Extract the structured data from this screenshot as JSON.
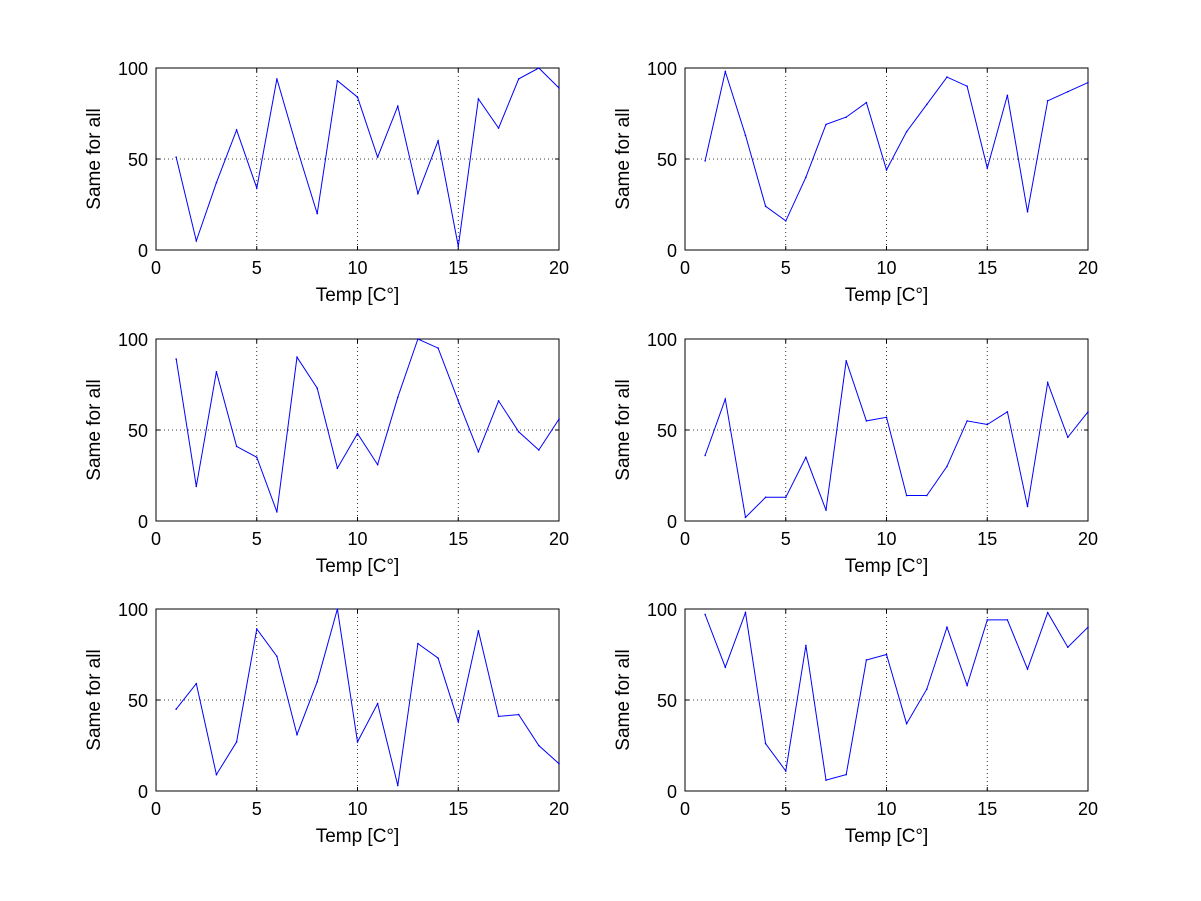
{
  "figure": {
    "background": "#ffffff",
    "line_color": "#0000ff",
    "grid_style": "dotted"
  },
  "chart_data": [
    {
      "type": "line",
      "grid": "x and y",
      "xlabel": "Temp [C°]",
      "ylabel": "Same for all",
      "xlim": [
        0,
        20
      ],
      "ylim": [
        0,
        100
      ],
      "xticks": [
        0,
        5,
        10,
        15,
        20
      ],
      "yticks": [
        0,
        50,
        100
      ],
      "series": [
        {
          "x": [
            1,
            2,
            3,
            4,
            5,
            6,
            7,
            8,
            9,
            10,
            11,
            12,
            13,
            14,
            15,
            16,
            17,
            18,
            19,
            20
          ],
          "y": [
            51,
            5,
            37,
            66,
            34,
            94,
            56,
            20,
            93,
            84,
            51,
            79,
            31,
            60,
            2,
            83,
            67,
            94,
            100,
            89
          ]
        }
      ]
    },
    {
      "type": "line",
      "grid": "x and y",
      "xlabel": "Temp [C°]",
      "ylabel": "Same for all",
      "xlim": [
        0,
        20
      ],
      "ylim": [
        0,
        100
      ],
      "xticks": [
        0,
        5,
        10,
        15,
        20
      ],
      "yticks": [
        0,
        50,
        100
      ],
      "series": [
        {
          "x": [
            1,
            2,
            3,
            4,
            5,
            6,
            7,
            8,
            9,
            10,
            11,
            12,
            13,
            14,
            15,
            16,
            17,
            18,
            19,
            20
          ],
          "y": [
            49,
            98,
            63,
            24,
            16,
            40,
            69,
            73,
            81,
            44,
            65,
            80,
            95,
            90,
            45,
            85,
            21,
            82,
            87,
            92
          ]
        }
      ]
    },
    {
      "type": "line",
      "grid": "x and y",
      "xlabel": "Temp [C°]",
      "ylabel": "Same for all",
      "xlim": [
        0,
        20
      ],
      "ylim": [
        0,
        100
      ],
      "xticks": [
        0,
        5,
        10,
        15,
        20
      ],
      "yticks": [
        0,
        50,
        100
      ],
      "series": [
        {
          "x": [
            1,
            2,
            3,
            4,
            5,
            6,
            7,
            8,
            9,
            10,
            11,
            12,
            13,
            14,
            15,
            16,
            17,
            18,
            19,
            20
          ],
          "y": [
            89,
            19,
            82,
            41,
            35,
            5,
            90,
            73,
            29,
            48,
            31,
            68,
            100,
            95,
            66,
            38,
            66,
            49,
            39,
            56
          ]
        }
      ]
    },
    {
      "type": "line",
      "grid": "x and y",
      "xlabel": "Temp [C°]",
      "ylabel": "Same for all",
      "xlim": [
        0,
        20
      ],
      "ylim": [
        0,
        100
      ],
      "xticks": [
        0,
        5,
        10,
        15,
        20
      ],
      "yticks": [
        0,
        50,
        100
      ],
      "series": [
        {
          "x": [
            1,
            2,
            3,
            4,
            5,
            6,
            7,
            8,
            9,
            10,
            11,
            12,
            13,
            14,
            15,
            16,
            17,
            18,
            19,
            20
          ],
          "y": [
            36,
            67,
            2,
            13,
            13,
            35,
            6,
            88,
            55,
            57,
            14,
            14,
            30,
            55,
            53,
            60,
            8,
            76,
            46,
            60
          ]
        }
      ]
    },
    {
      "type": "line",
      "grid": "x and y",
      "xlabel": "Temp [C°]",
      "ylabel": "Same for all",
      "xlim": [
        0,
        20
      ],
      "ylim": [
        0,
        100
      ],
      "xticks": [
        0,
        5,
        10,
        15,
        20
      ],
      "yticks": [
        0,
        50,
        100
      ],
      "series": [
        {
          "x": [
            1,
            2,
            3,
            4,
            5,
            6,
            7,
            8,
            9,
            10,
            11,
            12,
            13,
            14,
            15,
            16,
            17,
            18,
            19,
            20
          ],
          "y": [
            45,
            59,
            9,
            27,
            89,
            74,
            31,
            60,
            100,
            27,
            48,
            3,
            81,
            73,
            38,
            88,
            41,
            42,
            25,
            15
          ]
        }
      ]
    },
    {
      "type": "line",
      "grid": "x and y",
      "xlabel": "Temp [C°]",
      "ylabel": "Same for all",
      "xlim": [
        0,
        20
      ],
      "ylim": [
        0,
        100
      ],
      "xticks": [
        0,
        5,
        10,
        15,
        20
      ],
      "yticks": [
        0,
        50,
        100
      ],
      "series": [
        {
          "x": [
            1,
            2,
            3,
            4,
            5,
            6,
            7,
            8,
            9,
            10,
            11,
            12,
            13,
            14,
            15,
            16,
            17,
            18,
            19,
            20
          ],
          "y": [
            97,
            68,
            98,
            26,
            11,
            80,
            6,
            9,
            72,
            75,
            37,
            56,
            90,
            58,
            94,
            94,
            67,
            98,
            79,
            90
          ]
        }
      ]
    }
  ]
}
